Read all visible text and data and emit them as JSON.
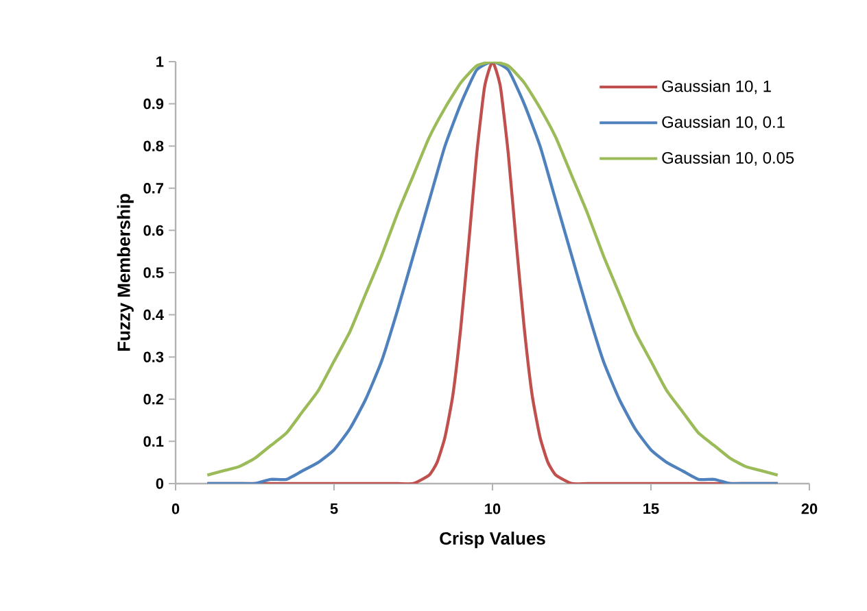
{
  "chart_data": {
    "type": "line",
    "xlabel": "Crisp Values",
    "ylabel": "Fuzzy Membership",
    "xlim": [
      0,
      20
    ],
    "ylim": [
      0,
      1
    ],
    "xticks": [
      0,
      5,
      10,
      15,
      20
    ],
    "yticks": [
      0,
      0.1,
      0.2,
      0.3,
      0.4,
      0.5,
      0.6,
      0.7,
      0.8,
      0.9,
      1
    ],
    "legend": "right",
    "grid": false,
    "marker": "none",
    "series": [
      {
        "name": "Gaussian 10, 1",
        "color": "#c0504d",
        "x": [
          1,
          2,
          3,
          4,
          5,
          6,
          7,
          7.5,
          8,
          8.25,
          8.5,
          8.75,
          9,
          9.25,
          9.5,
          9.75,
          10,
          10.25,
          10.5,
          10.75,
          11,
          11.25,
          11.5,
          11.75,
          12,
          12.5,
          13,
          14,
          15,
          16,
          17,
          18,
          19
        ],
        "values": [
          0,
          0,
          0,
          0,
          0,
          0,
          0,
          0,
          0.02,
          0.05,
          0.11,
          0.21,
          0.37,
          0.57,
          0.78,
          0.94,
          1,
          0.94,
          0.78,
          0.57,
          0.37,
          0.21,
          0.11,
          0.05,
          0.02,
          0,
          0,
          0,
          0,
          0,
          0,
          0,
          0
        ]
      },
      {
        "name": "Gaussian 10, 0.1",
        "color": "#4f81bd",
        "x": [
          1,
          1.5,
          2,
          2.5,
          3,
          3.5,
          4,
          4.5,
          5,
          5.5,
          6,
          6.5,
          7,
          7.5,
          8,
          8.5,
          9,
          9.5,
          10,
          10.5,
          11,
          11.5,
          12,
          12.5,
          13,
          13.5,
          14,
          14.5,
          15,
          15.5,
          16,
          16.5,
          17,
          17.5,
          18,
          18.5,
          19
        ],
        "values": [
          0,
          0,
          0,
          0,
          0.01,
          0.01,
          0.03,
          0.05,
          0.08,
          0.13,
          0.2,
          0.29,
          0.41,
          0.54,
          0.67,
          0.8,
          0.9,
          0.98,
          1,
          0.98,
          0.9,
          0.8,
          0.67,
          0.54,
          0.41,
          0.29,
          0.2,
          0.13,
          0.08,
          0.05,
          0.03,
          0.01,
          0.01,
          0,
          0,
          0,
          0
        ]
      },
      {
        "name": "Gaussian 10, 0.05",
        "color": "#9bbb59",
        "x": [
          1,
          1.5,
          2,
          2.5,
          3,
          3.5,
          4,
          4.5,
          5,
          5.5,
          6,
          6.5,
          7,
          7.5,
          8,
          8.5,
          9,
          9.5,
          10,
          10.5,
          11,
          11.5,
          12,
          12.5,
          13,
          13.5,
          14,
          14.5,
          15,
          15.5,
          16,
          16.5,
          17,
          17.5,
          18,
          18.5,
          19
        ],
        "values": [
          0.02,
          0.03,
          0.04,
          0.06,
          0.09,
          0.12,
          0.17,
          0.22,
          0.29,
          0.36,
          0.45,
          0.54,
          0.64,
          0.73,
          0.82,
          0.89,
          0.95,
          0.99,
          1,
          0.99,
          0.95,
          0.89,
          0.82,
          0.73,
          0.64,
          0.54,
          0.45,
          0.36,
          0.29,
          0.22,
          0.17,
          0.12,
          0.09,
          0.06,
          0.04,
          0.03,
          0.02
        ]
      }
    ]
  }
}
